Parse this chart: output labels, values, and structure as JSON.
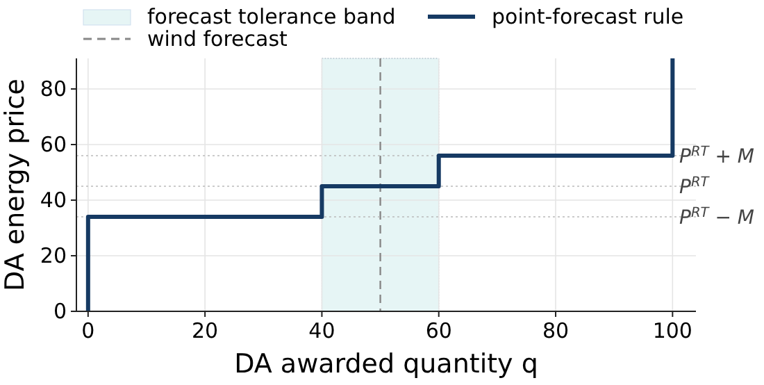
{
  "chart_data": {
    "type": "line",
    "xlabel": "DA awarded quantity q",
    "ylabel": "DA energy price",
    "xlim": [
      -2,
      104
    ],
    "ylim": [
      0,
      91
    ],
    "xticks": [
      0,
      20,
      40,
      60,
      80,
      100
    ],
    "yticks": [
      0,
      20,
      40,
      60,
      80
    ],
    "grid": true,
    "legend": "top",
    "line_style": "solid",
    "marker": "none",
    "series": [
      {
        "name": "point-forecast rule",
        "color": "#163a63",
        "x": [
          0,
          0,
          40,
          40,
          60,
          60,
          100,
          100
        ],
        "values": [
          0,
          34,
          34,
          45,
          45,
          56,
          56,
          91
        ]
      }
    ],
    "bands": [
      {
        "axis": "x",
        "from": 40,
        "to": 60,
        "label": "forecast tolerance band",
        "color": "#e6f5f5"
      }
    ],
    "ref_lines": [
      {
        "axis": "x",
        "value": 50,
        "label": "wind forecast",
        "color": "#888888",
        "line_style": "dashed"
      },
      {
        "axis": "y",
        "value": 56,
        "label": "P$^{RT}$ + M",
        "color": "#bbbbbb",
        "line_style": "dotted"
      },
      {
        "axis": "y",
        "value": 45,
        "label": "P$^{RT}$",
        "color": "#bbbbbb",
        "line_style": "dotted"
      },
      {
        "axis": "y",
        "value": 34,
        "label": "P$^{RT}$ − M",
        "color": "#bbbbbb",
        "line_style": "dotted"
      }
    ]
  }
}
